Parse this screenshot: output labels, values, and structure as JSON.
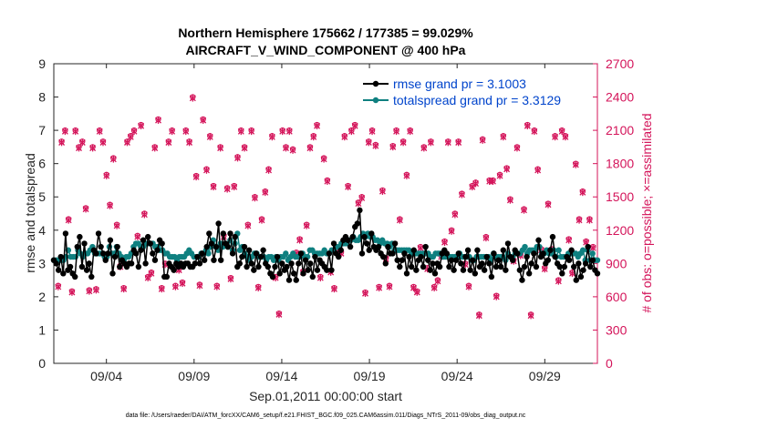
{
  "chart_data": {
    "type": "line",
    "title_line1": "Northern Hemisphere 175662 / 177385 = 99.029%",
    "title_line2": "AIRCRAFT_V_WIND_COMPONENT @ 400 hPa",
    "xlabel": "Sep.01,2011 00:00:00 start",
    "ylabel_left": "rmse and totalspread",
    "ylabel_right": "# of obs: o=possible; ×=assimilated",
    "xlim": [
      1,
      32
    ],
    "ylim_left": [
      0,
      9
    ],
    "ylim_right": [
      0,
      2700
    ],
    "x_ticks": [
      {
        "x": 4,
        "label": "09/04"
      },
      {
        "x": 9,
        "label": "09/09"
      },
      {
        "x": 14,
        "label": "09/14"
      },
      {
        "x": 19,
        "label": "09/19"
      },
      {
        "x": 24,
        "label": "09/24"
      },
      {
        "x": 29,
        "label": "09/29"
      }
    ],
    "y_ticks_left": [
      0,
      1,
      2,
      3,
      4,
      5,
      6,
      7,
      8,
      9
    ],
    "y_ticks_right": [
      0,
      300,
      600,
      900,
      1200,
      1500,
      1800,
      2100,
      2400,
      2700
    ],
    "footnote": "data file: /Users/raeder/DAI/ATM_forcXX/CAM6_setup/f.e21.FHIST_BGC.f09_025.CAM6assim.011/Diags_NTrS_2011-09/obs_diag_output.nc",
    "colors": {
      "rmse": "#000000",
      "spread": "#0f8080",
      "obs": "#d4145a",
      "legend_text": "#0044cc"
    },
    "series": [
      {
        "name": "rmse grand pr = 3.1003",
        "values": [
          3.1,
          3.0,
          2.8,
          3.2,
          2.7,
          3.9,
          2.8,
          2.9,
          2.7,
          2.6,
          3.5,
          3.8,
          2.9,
          3.6,
          2.8,
          3.0,
          2.6,
          3.4,
          3.3,
          3.9,
          3.5,
          3.3,
          3.1,
          3.3,
          3.7,
          2.7,
          3.2,
          3.5,
          2.9,
          3.1,
          3.0,
          2.9,
          3.0,
          3.0,
          3.4,
          3.3,
          2.9,
          3.4,
          3.7,
          3.0,
          3.8,
          3.6,
          3.3,
          3.1,
          3.4,
          3.7,
          3.6,
          2.6,
          2.6,
          3.0,
          2.9,
          2.8,
          3.0,
          2.9,
          3.0,
          2.9,
          3.0,
          3.0,
          2.9,
          2.9,
          3.0,
          3.2,
          3.0,
          3.3,
          3.1,
          3.5,
          3.9,
          3.6,
          3.1,
          3.5,
          4.2,
          3.1,
          3.9,
          3.6,
          3.5,
          3.9,
          3.3,
          3.8,
          2.9,
          3.0,
          3.2,
          3.5,
          2.9,
          3.4,
          3.0,
          2.8,
          3.3,
          2.9,
          3.2,
          3.4,
          3.0,
          2.9,
          2.7,
          2.6,
          2.9,
          3.2,
          2.7,
          3.0,
          2.8,
          2.9,
          2.5,
          3.0,
          2.7,
          2.5,
          3.0,
          3.3,
          2.7,
          3.1,
          2.8,
          3.0,
          2.6,
          3.2,
          2.8,
          3.1,
          3.0,
          2.9,
          2.8,
          3.3,
          2.8,
          3.6,
          3.3,
          3.2,
          3.4,
          3.7,
          3.8,
          3.7,
          3.5,
          3.8,
          4.1,
          4.2,
          4.6,
          3.3,
          3.8,
          3.6,
          3.4,
          3.9,
          3.5,
          3.4,
          3.5,
          3.3,
          3.2,
          3.0,
          3.5,
          3.3,
          3.3,
          3.6,
          3.1,
          2.9,
          3.1,
          3.3,
          2.7,
          3.2,
          2.9,
          3.4,
          2.8,
          3.1,
          3.2,
          2.9,
          3.5,
          3.1,
          2.8,
          3.0,
          2.7,
          3.0,
          2.9,
          3.3,
          3.4,
          3.3,
          2.9,
          3.1,
          2.8,
          3.1,
          3.3,
          3.0,
          2.8,
          3.2,
          3.4,
          2.8,
          3.1,
          2.7,
          3.4,
          2.9,
          3.0,
          2.8,
          3.2,
          3.0,
          2.6,
          3.3,
          2.9,
          3.1,
          2.9,
          3.4,
          2.8,
          3.6,
          3.2,
          3.1,
          3.4,
          3.3,
          2.8,
          2.5,
          2.9,
          3.2,
          2.7,
          3.0,
          3.3,
          2.9,
          3.7,
          3.2,
          3.3,
          3.0,
          3.1,
          3.4,
          3.8,
          3.2,
          3.0,
          2.9,
          2.7,
          2.9,
          3.2,
          3.1,
          3.4,
          2.9,
          2.5,
          3.0,
          2.6,
          2.8,
          3.0,
          3.5,
          2.9,
          3.1,
          2.8,
          2.7
        ]
      },
      {
        "name": "totalspread grand pr = 3.3129",
        "values": [
          3.1,
          3.1,
          3.1,
          3.1,
          3.1,
          3.2,
          3.4,
          3.2,
          3.2,
          3.2,
          3.4,
          3.3,
          3.2,
          3.3,
          3.3,
          3.4,
          3.5,
          3.3,
          3.3,
          3.3,
          3.3,
          3.2,
          3.2,
          3.5,
          3.3,
          3.3,
          3.5,
          3.3,
          3.2,
          3.1,
          3.2,
          3.2,
          3.3,
          3.5,
          3.6,
          3.6,
          3.5,
          3.5,
          3.6,
          3.6,
          3.6,
          3.6,
          3.5,
          3.5,
          3.4,
          3.4,
          3.3,
          3.3,
          3.2,
          3.2,
          3.2,
          3.1,
          3.2,
          3.2,
          3.2,
          3.3,
          3.4,
          3.3,
          3.2,
          3.2,
          3.2,
          3.3,
          3.3,
          3.4,
          3.3,
          3.5,
          3.7,
          3.5,
          3.4,
          3.6,
          3.5,
          3.6,
          3.5,
          3.7,
          3.4,
          3.6,
          3.9,
          3.4,
          3.5,
          3.3,
          3.2,
          3.1,
          3.2,
          3.3,
          3.3,
          3.2,
          3.2,
          3.2,
          3.1,
          3.2,
          3.2,
          3.1,
          3.2,
          3.1,
          3.2,
          3.2,
          3.3,
          3.1,
          3.2,
          3.3,
          3.2,
          3.2,
          3.2,
          3.3,
          3.2,
          3.2,
          3.4,
          3.4,
          3.3,
          3.3,
          3.3,
          3.3,
          3.4,
          3.3,
          3.3,
          3.4,
          3.4,
          3.5,
          3.5,
          3.6,
          3.6,
          3.6,
          3.7,
          3.7,
          3.8,
          3.7,
          3.7,
          3.8,
          3.9,
          3.8,
          3.9,
          3.8,
          3.8,
          3.7,
          3.7,
          3.6,
          3.7,
          3.6,
          3.6,
          3.5,
          3.6,
          3.4,
          3.4,
          3.4,
          3.4,
          3.4,
          3.4,
          3.4,
          3.3,
          3.3,
          3.3,
          3.3,
          3.3,
          3.3,
          3.3,
          3.3,
          3.2,
          3.2,
          3.3,
          3.3,
          3.3,
          3.2,
          3.2,
          3.2,
          3.2,
          3.2,
          3.2,
          3.2,
          3.3,
          3.2,
          3.2,
          3.2,
          3.2,
          3.1,
          3.1,
          3.2,
          3.2,
          3.2,
          3.2,
          3.2,
          3.2,
          3.1,
          3.3,
          3.2,
          3.2,
          3.2,
          3.2,
          3.1,
          3.3,
          3.2,
          3.2,
          3.3,
          3.3,
          3.3,
          3.4,
          3.5,
          3.3,
          3.4,
          3.4,
          3.4,
          3.5,
          3.5,
          3.3,
          3.3,
          3.4,
          3.3,
          3.3,
          3.4,
          3.2,
          3.4,
          3.2,
          3.2,
          3.2,
          3.3,
          3.3,
          3.3,
          3.3,
          3.2,
          3.3,
          3.4,
          3.1,
          3.4,
          3.1,
          3.3,
          3.1,
          3.1
        ]
      },
      {
        "name": "# of obs possible",
        "values": [
          700,
          2000,
          2100,
          1300,
          650,
          2100,
          1950,
          2000,
          1400,
          660,
          1950,
          670,
          2100,
          2000,
          1700,
          1430,
          1850,
          1250,
          880,
          680,
          2000,
          2050,
          2100,
          1150,
          2150,
          1350,
          780,
          820,
          1950,
          2200,
          680,
          900,
          2000,
          2100,
          700,
          850,
          730,
          2100,
          2000,
          2400,
          1690,
          710,
          2200,
          1750,
          2050,
          1600,
          700,
          1950,
          1150,
          1580,
          770,
          1600,
          1860,
          2100,
          1950,
          1250,
          2100,
          1500,
          690,
          1300,
          1550,
          1750,
          2050,
          780,
          450,
          2100,
          1950,
          2100,
          1930,
          1000,
          1120,
          830,
          1250,
          1950,
          2050,
          2150,
          780,
          1850,
          1650,
          830,
          680,
          1050,
          1000,
          2050,
          1600,
          2100,
          2150,
          1450,
          1500,
          640,
          2000,
          2100,
          1970,
          690,
          1560,
          950,
          700,
          1960,
          2100,
          1300,
          2000,
          1700,
          2100,
          690,
          650,
          1050,
          1950,
          860,
          2000,
          690,
          750,
          970,
          1100,
          2000,
          1200,
          1350,
          2000,
          1530,
          900,
          700,
          1600,
          1630,
          440,
          2020,
          1140,
          1650,
          1650,
          610,
          1700,
          2050,
          1760,
          1480,
          930,
          1950,
          980,
          1390,
          2150,
          440,
          2100,
          1750,
          1030,
          860,
          1440,
          1030,
          2050,
          750,
          2100,
          2050,
          1120,
          820,
          1800,
          1300,
          1550,
          1100,
          1300,
          1050
        ]
      },
      {
        "name": "# of obs assimilated",
        "values": [
          690,
          1990,
          2090,
          1290,
          640,
          2090,
          1940,
          1990,
          1390,
          650,
          1940,
          660,
          2090,
          1990,
          1690,
          1420,
          1840,
          1240,
          870,
          670,
          1990,
          2040,
          2090,
          1140,
          2140,
          1340,
          770,
          810,
          1940,
          2190,
          670,
          890,
          1990,
          2090,
          690,
          840,
          720,
          2090,
          1990,
          2390,
          1680,
          700,
          2190,
          1740,
          2040,
          1590,
          690,
          1940,
          1140,
          1570,
          760,
          1590,
          1850,
          2090,
          1940,
          1240,
          2090,
          1490,
          680,
          1290,
          1540,
          1740,
          2040,
          770,
          440,
          2090,
          1940,
          2090,
          1920,
          990,
          1110,
          820,
          1240,
          1940,
          2040,
          2140,
          770,
          1840,
          1640,
          820,
          670,
          1040,
          990,
          2040,
          1590,
          2090,
          2140,
          1440,
          1490,
          630,
          1990,
          2090,
          1960,
          680,
          1550,
          940,
          690,
          1950,
          2090,
          1290,
          1990,
          1690,
          2090,
          680,
          640,
          1040,
          1940,
          850,
          1990,
          680,
          740,
          960,
          1090,
          1990,
          1190,
          1340,
          1990,
          1520,
          890,
          690,
          1590,
          1620,
          430,
          2010,
          1130,
          1640,
          1640,
          600,
          1690,
          2040,
          1750,
          1470,
          920,
          1940,
          970,
          1380,
          2140,
          430,
          2090,
          1740,
          1020,
          850,
          1430,
          1020,
          2040,
          740,
          2090,
          2040,
          1110,
          810,
          1790,
          1290,
          1540,
          1090,
          1290,
          1040
        ]
      }
    ]
  }
}
